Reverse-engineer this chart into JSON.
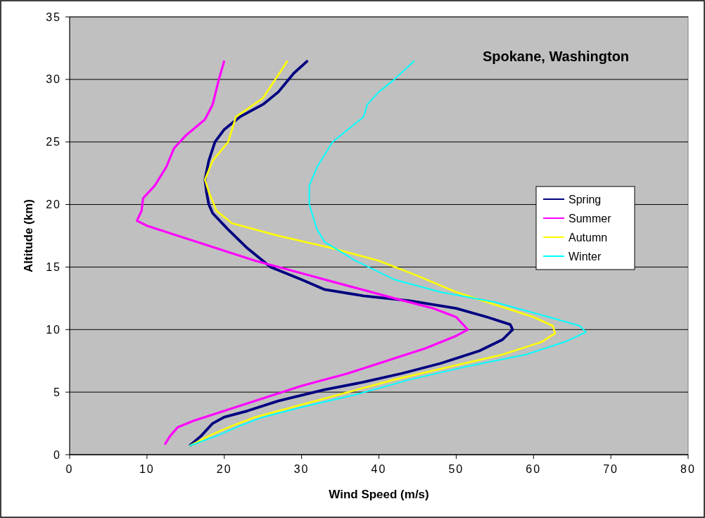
{
  "chart_data": {
    "type": "line",
    "title": "Spokane, Washington",
    "xlabel": "Wind Speed (m/s)",
    "ylabel": "Altitude (km)",
    "xlim": [
      0,
      80
    ],
    "xticks": [
      0,
      10,
      20,
      30,
      40,
      50,
      60,
      70,
      80
    ],
    "ylim": [
      0,
      35
    ],
    "yticks": [
      0,
      5,
      10,
      15,
      20,
      25,
      30,
      35
    ],
    "grid": "y",
    "legend": "right",
    "marker": "none",
    "line_style": "solid",
    "series": [
      {
        "name": "Spring",
        "color": "#000080",
        "x": [
          15.5,
          17,
          18.5,
          20,
          23,
          27,
          33,
          38,
          43,
          48,
          53,
          56,
          57.3,
          57,
          54,
          50,
          44,
          38,
          33,
          30,
          26,
          23,
          20.5,
          18.5,
          18,
          17.7,
          17.5,
          18,
          18.8,
          20,
          22,
          25,
          27,
          29,
          30.8
        ],
        "values": [
          0.7,
          1.5,
          2.5,
          3,
          3.5,
          4.3,
          5.2,
          5.8,
          6.5,
          7.3,
          8.3,
          9.2,
          10,
          10.4,
          11,
          11.7,
          12.3,
          12.7,
          13.2,
          14,
          15,
          16.5,
          18,
          19.3,
          20,
          21,
          22,
          23.5,
          25,
          26,
          27,
          28,
          29,
          30.5,
          31.5
        ]
      },
      {
        "name": "Summer",
        "color": "#ff00ff",
        "x": [
          12.3,
          13,
          14,
          16,
          20,
          25,
          30,
          36,
          41,
          46,
          50,
          51.5,
          50,
          47,
          42,
          36,
          30,
          24,
          19,
          14,
          10,
          8.7,
          9.3,
          9.5,
          11,
          12.5,
          13.5,
          15,
          17.5,
          18.5,
          19.3,
          20
        ],
        "values": [
          0.8,
          1.5,
          2.2,
          2.7,
          3.5,
          4.5,
          5.5,
          6.5,
          7.5,
          8.5,
          9.5,
          10,
          11,
          11.7,
          12.5,
          13.5,
          14.5,
          15.5,
          16.5,
          17.5,
          18.3,
          18.7,
          19.5,
          20.5,
          21.5,
          23,
          24.5,
          25.5,
          26.8,
          28,
          30,
          31.5
        ]
      },
      {
        "name": "Autumn",
        "color": "#ffff00",
        "x": [
          15.5,
          18,
          21,
          24,
          30,
          36,
          42,
          49,
          56,
          61,
          62.8,
          62.5,
          60,
          55,
          50,
          45,
          40,
          34,
          27,
          21,
          19,
          18,
          17.5,
          18.5,
          20.5,
          21.5,
          25,
          28.2
        ],
        "values": [
          0.7,
          1.5,
          2.3,
          3,
          4,
          5,
          6,
          7,
          8,
          9,
          9.7,
          10.3,
          11,
          12,
          13,
          14.3,
          15.5,
          16.5,
          17.5,
          18.5,
          19.5,
          21,
          22,
          23.5,
          25,
          27,
          28.5,
          31.5
        ]
      },
      {
        "name": "Winter",
        "color": "#00ffff",
        "x": [
          15.5,
          19,
          22,
          25,
          30,
          37,
          44,
          51,
          59,
          64,
          66.8,
          66,
          62,
          55,
          48,
          42,
          37,
          33,
          32,
          31,
          31,
          32,
          34,
          37,
          38,
          38.5,
          40,
          42,
          44.6
        ],
        "values": [
          0.7,
          1.5,
          2.3,
          3,
          3.8,
          4.8,
          6,
          7,
          8,
          9,
          9.8,
          10.3,
          11,
          12.2,
          13,
          14,
          15.5,
          17,
          18,
          20,
          21.5,
          23,
          25,
          26.5,
          27,
          28,
          29,
          30,
          31.5
        ]
      }
    ]
  }
}
